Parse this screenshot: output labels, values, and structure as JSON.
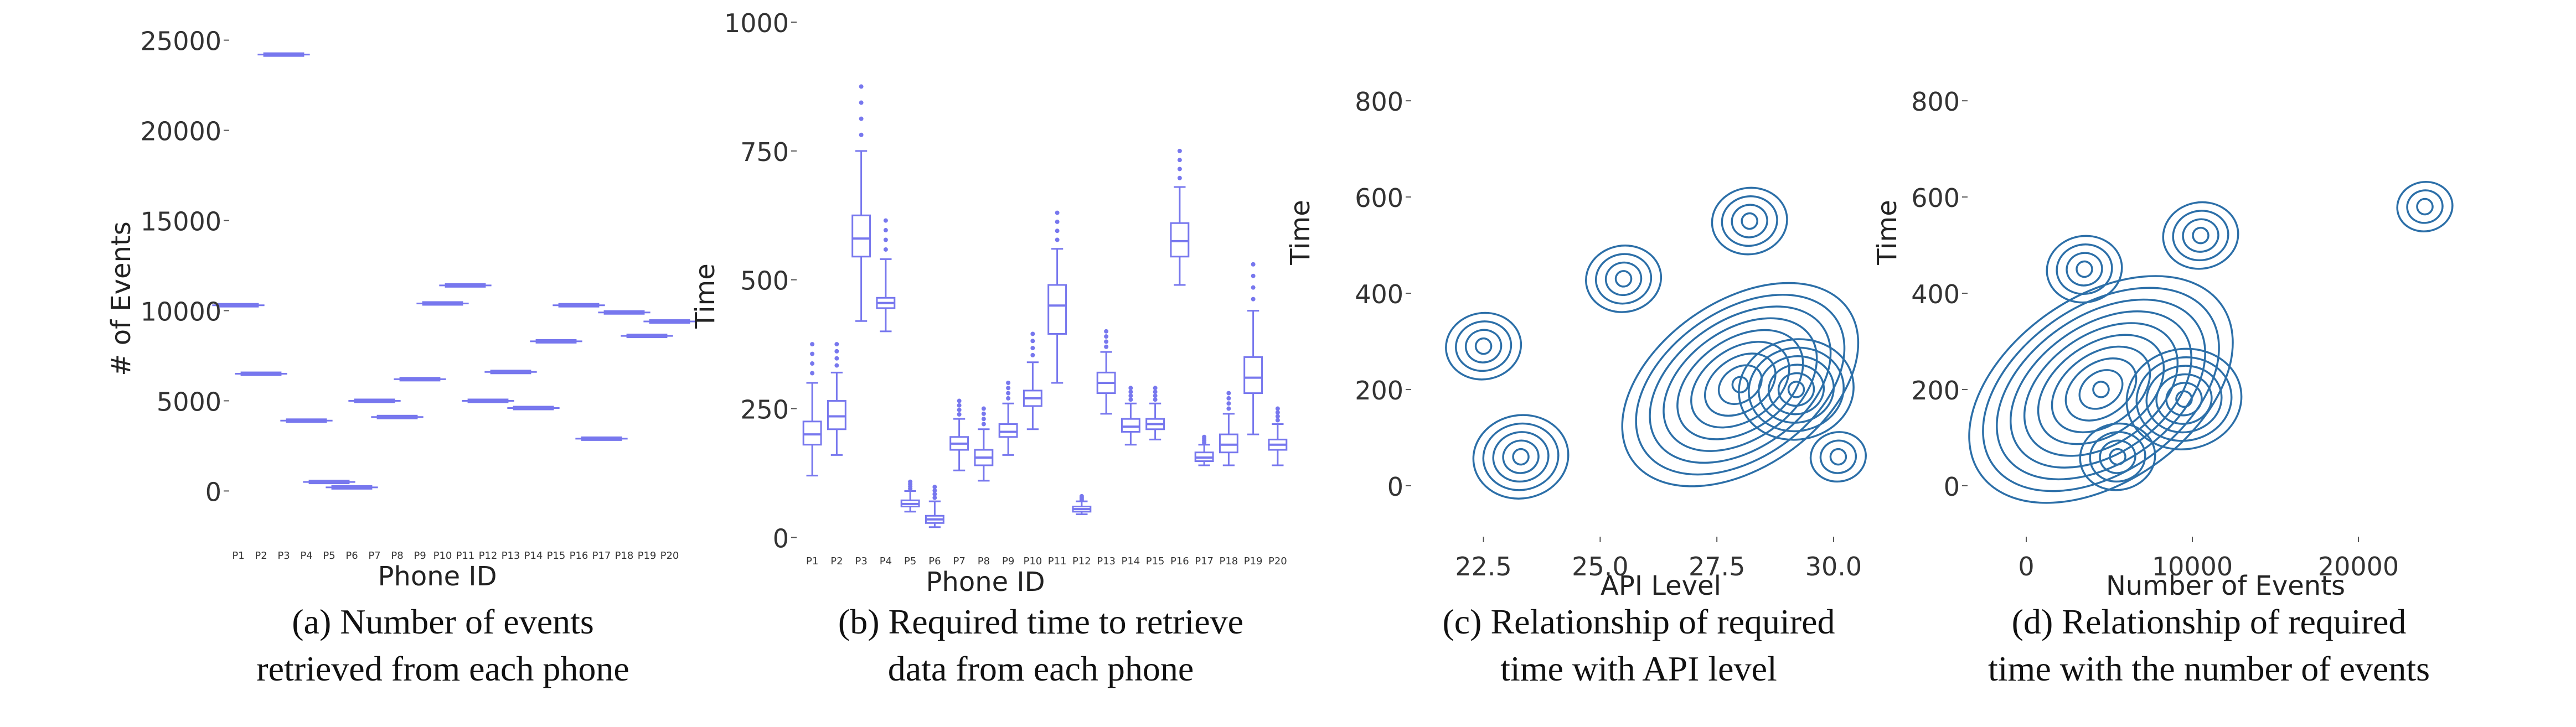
{
  "colors": {
    "box": "#7777ee",
    "kde": "#2c6fa8",
    "text": "#222222"
  },
  "chart_data": [
    {
      "type": "box",
      "title": "",
      "xlabel": "Phone ID",
      "ylabel": "# of Events",
      "ylim": [
        -1000,
        26000
      ],
      "yticks": [
        0,
        5000,
        10000,
        15000,
        20000,
        25000
      ],
      "ytick_labels": [
        "0",
        "5000",
        "10000",
        "15000",
        "20000",
        "25000"
      ],
      "categories": [
        "P1",
        "P2",
        "P3",
        "P4",
        "P5",
        "P6",
        "P7",
        "P8",
        "P9",
        "P10",
        "P11",
        "P12",
        "P13",
        "P14",
        "P15",
        "P16",
        "P17",
        "P18",
        "P19",
        "P20"
      ],
      "values": [
        10300,
        6500,
        24200,
        3900,
        500,
        200,
        5000,
        4100,
        6200,
        10400,
        11400,
        5000,
        6600,
        4600,
        8300,
        10300,
        2900,
        9900,
        8600,
        9400
      ],
      "caption": [
        "(a) Number of events",
        "retrieved from each phone"
      ]
    },
    {
      "type": "box",
      "title": "",
      "xlabel": "Phone ID",
      "ylabel": "Time",
      "ylim": [
        -20,
        1000
      ],
      "yticks": [
        0,
        250,
        500,
        750,
        1000
      ],
      "ytick_labels": [
        "0",
        "250",
        "500",
        "750",
        "1000"
      ],
      "categories": [
        "P1",
        "P2",
        "P3",
        "P4",
        "P5",
        "P6",
        "P7",
        "P8",
        "P9",
        "P10",
        "P11",
        "P12",
        "P13",
        "P14",
        "P15",
        "P16",
        "P17",
        "P18",
        "P19",
        "P20"
      ],
      "boxes": [
        {
          "q1": 180,
          "median": 200,
          "q3": 225,
          "low": 120,
          "high": 300
        },
        {
          "q1": 210,
          "median": 235,
          "q3": 265,
          "low": 160,
          "high": 320
        },
        {
          "q1": 545,
          "median": 580,
          "q3": 625,
          "low": 420,
          "high": 750
        },
        {
          "q1": 445,
          "median": 455,
          "q3": 465,
          "low": 400,
          "high": 540
        },
        {
          "q1": 60,
          "median": 65,
          "q3": 72,
          "low": 50,
          "high": 90
        },
        {
          "q1": 28,
          "median": 35,
          "q3": 42,
          "low": 20,
          "high": 70
        },
        {
          "q1": 170,
          "median": 182,
          "q3": 195,
          "low": 130,
          "high": 230
        },
        {
          "q1": 140,
          "median": 155,
          "q3": 170,
          "low": 110,
          "high": 210
        },
        {
          "q1": 195,
          "median": 205,
          "q3": 220,
          "low": 160,
          "high": 260
        },
        {
          "q1": 255,
          "median": 270,
          "q3": 285,
          "low": 210,
          "high": 340
        },
        {
          "q1": 395,
          "median": 450,
          "q3": 490,
          "low": 300,
          "high": 560
        },
        {
          "q1": 50,
          "median": 55,
          "q3": 60,
          "low": 45,
          "high": 70
        },
        {
          "q1": 280,
          "median": 300,
          "q3": 320,
          "low": 240,
          "high": 360
        },
        {
          "q1": 205,
          "median": 215,
          "q3": 230,
          "low": 180,
          "high": 260
        },
        {
          "q1": 210,
          "median": 220,
          "q3": 230,
          "low": 190,
          "high": 260
        },
        {
          "q1": 545,
          "median": 575,
          "q3": 610,
          "low": 490,
          "high": 680
        },
        {
          "q1": 148,
          "median": 155,
          "q3": 165,
          "low": 140,
          "high": 180
        },
        {
          "q1": 165,
          "median": 180,
          "q3": 200,
          "low": 140,
          "high": 240
        },
        {
          "q1": 280,
          "median": 310,
          "q3": 350,
          "low": 200,
          "high": 440
        },
        {
          "q1": 170,
          "median": 180,
          "q3": 190,
          "low": 140,
          "high": 220
        }
      ],
      "caption": [
        "(b) Required time to retrieve",
        "data from each phone"
      ]
    },
    {
      "type": "kde",
      "title": "",
      "xlabel": "API Level",
      "ylabel": "Time",
      "xlim": [
        21.2,
        31.4
      ],
      "ylim": [
        -60,
        860
      ],
      "xticks": [
        22.5,
        25.0,
        27.5,
        30.0
      ],
      "xtick_labels": [
        "22.5",
        "25.0",
        "27.5",
        "30.0"
      ],
      "yticks": [
        0,
        200,
        400,
        600,
        800
      ],
      "ytick_labels": [
        "0",
        "200",
        "400",
        "600",
        "800"
      ],
      "clusters": [
        {
          "x": 22.5,
          "y": 290,
          "levels": 4
        },
        {
          "x": 23.3,
          "y": 60,
          "levels": 5
        },
        {
          "x": 25.5,
          "y": 430,
          "levels": 4
        },
        {
          "x": 28.2,
          "y": 550,
          "levels": 4
        },
        {
          "x": 28.0,
          "y": 210,
          "levels": 9
        },
        {
          "x": 29.2,
          "y": 200,
          "levels": 6
        },
        {
          "x": 30.1,
          "y": 60,
          "levels": 3
        }
      ],
      "caption": [
        "(c) Relationship of required",
        "time with API level"
      ]
    },
    {
      "type": "kde",
      "title": "",
      "xlabel": "Number of Events",
      "ylabel": "Time",
      "xlim": [
        -3000,
        27000
      ],
      "ylim": [
        -60,
        860
      ],
      "xticks": [
        0,
        10000,
        20000
      ],
      "xtick_labels": [
        "0",
        "10000",
        "20000"
      ],
      "yticks": [
        0,
        200,
        400,
        600,
        800
      ],
      "ytick_labels": [
        "0",
        "200",
        "400",
        "600",
        "800"
      ],
      "clusters": [
        {
          "x": 4500,
          "y": 200,
          "levels": 10
        },
        {
          "x": 3500,
          "y": 450,
          "levels": 4
        },
        {
          "x": 10500,
          "y": 520,
          "levels": 4
        },
        {
          "x": 9500,
          "y": 180,
          "levels": 6
        },
        {
          "x": 5500,
          "y": 60,
          "levels": 4
        },
        {
          "x": 24000,
          "y": 580,
          "levels": 3
        }
      ],
      "caption": [
        "(d) Relationship of required",
        "time with the number of events"
      ]
    }
  ]
}
